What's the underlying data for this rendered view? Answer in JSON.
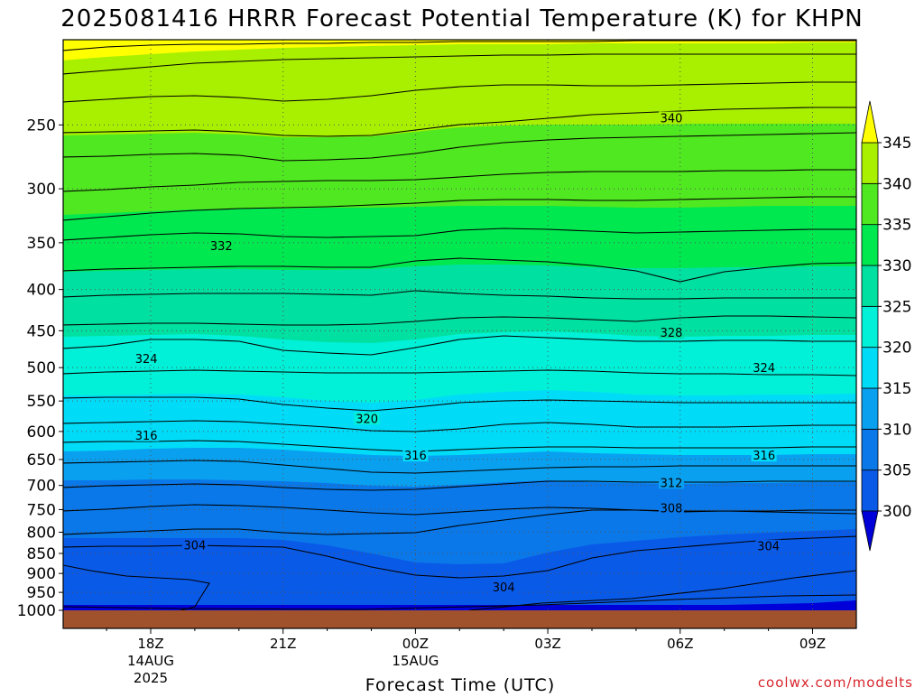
{
  "chart_data": {
    "type": "heatmap",
    "title": "2025081416 HRRR Forecast Potential Temperature (K) for KHPN",
    "xlabel": "Forecast Time (UTC)",
    "credit": "coolwx.com/modelts",
    "y_axis": {
      "scale": "log",
      "inverted": true,
      "range": [
        1000,
        200
      ],
      "unit": "hPa",
      "ticks": [
        250,
        300,
        350,
        400,
        450,
        500,
        550,
        600,
        650,
        700,
        750,
        800,
        850,
        900,
        950,
        1000
      ]
    },
    "x_axis": {
      "range_hours": [
        -2,
        28
      ],
      "ticks": [
        {
          "hour": 0,
          "label": "18Z",
          "sub": [
            "14AUG",
            "2025"
          ]
        },
        {
          "hour": 3,
          "label": "21Z",
          "sub": []
        },
        {
          "hour": 6,
          "label": "00Z",
          "sub": [
            "15AUG"
          ]
        },
        {
          "hour": 9,
          "label": "03Z",
          "sub": []
        },
        {
          "hour": 12,
          "label": "06Z",
          "sub": []
        },
        {
          "hour": 15,
          "label": "09Z",
          "sub": []
        }
      ]
    },
    "grid": true,
    "colorbar": {
      "position": "right",
      "ticks": [
        300,
        305,
        310,
        315,
        320,
        325,
        330,
        335,
        340,
        345
      ],
      "bands": [
        {
          "from": 295,
          "to": 300,
          "color": "#0000d8"
        },
        {
          "from": 300,
          "to": 305,
          "color": "#0a5ae8"
        },
        {
          "from": 305,
          "to": 310,
          "color": "#0a78e8"
        },
        {
          "from": 310,
          "to": 315,
          "color": "#0aa0f0"
        },
        {
          "from": 315,
          "to": 320,
          "color": "#00dcf8"
        },
        {
          "from": 320,
          "to": 325,
          "color": "#00f0d8"
        },
        {
          "from": 325,
          "to": 330,
          "color": "#00e0a0"
        },
        {
          "from": 330,
          "to": 335,
          "color": "#00e850"
        },
        {
          "from": 335,
          "to": 340,
          "color": "#50e820"
        },
        {
          "from": 340,
          "to": 345,
          "color": "#a8f000"
        },
        {
          "from": 345,
          "to": 350,
          "color": "#ffff00"
        }
      ]
    },
    "surface_color": "#a0522d",
    "contour_labels": [
      {
        "value": "340",
        "hour": 11.8,
        "p": 245
      },
      {
        "value": "332",
        "hour": 1.6,
        "p": 353
      },
      {
        "value": "328",
        "hour": 11.8,
        "p": 452
      },
      {
        "value": "324",
        "hour": -0.1,
        "p": 487
      },
      {
        "value": "324",
        "hour": 13.9,
        "p": 500
      },
      {
        "value": "320",
        "hour": 4.9,
        "p": 578
      },
      {
        "value": "316",
        "hour": -0.1,
        "p": 606
      },
      {
        "value": "316",
        "hour": 6.0,
        "p": 642
      },
      {
        "value": "316",
        "hour": 13.9,
        "p": 642
      },
      {
        "value": "312",
        "hour": 11.8,
        "p": 694
      },
      {
        "value": "308",
        "hour": 11.8,
        "p": 746
      },
      {
        "value": "304",
        "hour": 1.0,
        "p": 830
      },
      {
        "value": "304",
        "hour": 8.0,
        "p": 935
      },
      {
        "value": "304",
        "hour": 14.0,
        "p": 832
      }
    ]
  }
}
